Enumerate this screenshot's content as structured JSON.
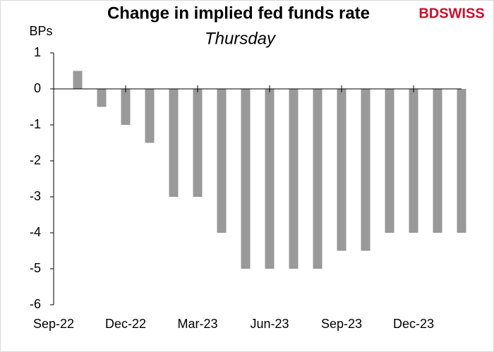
{
  "chart_data": {
    "type": "bar",
    "title": "Change in implied fed funds rate",
    "subtitle": "Thursday",
    "y_label": "BPs",
    "logo": "BDSWISS",
    "categories": [
      "Sep-22",
      null,
      null,
      "Dec-22",
      null,
      null,
      "Mar-23",
      null,
      null,
      "Jun-23",
      null,
      null,
      "Sep-23",
      null,
      null,
      "Dec-23",
      null,
      null
    ],
    "values": [
      null,
      0.5,
      -0.5,
      -1,
      -1.5,
      -3,
      -3,
      -4,
      -5,
      -5,
      -5,
      -5,
      -4.5,
      -4.5,
      -4,
      -4,
      -4,
      -4
    ],
    "color": "#999999",
    "ylim": [
      -6,
      1
    ],
    "yticks": [
      1,
      0,
      -1,
      -2,
      -3,
      -4,
      -5,
      -6
    ]
  }
}
